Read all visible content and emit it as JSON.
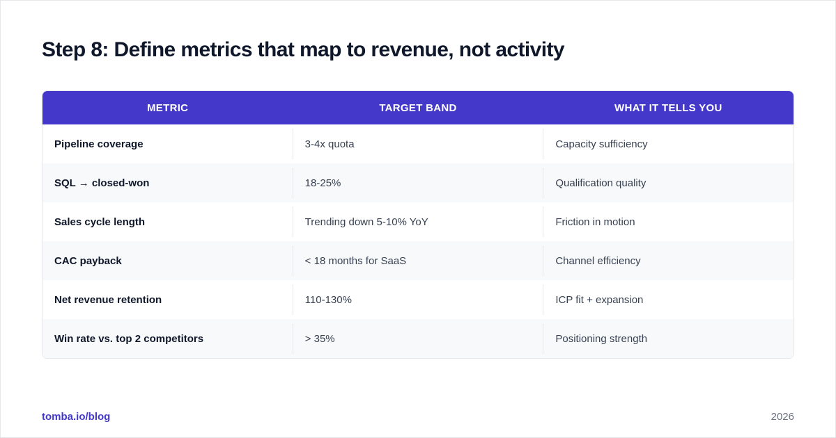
{
  "title": "Step 8: Define metrics that map to revenue, not activity",
  "table": {
    "headers": [
      "METRIC",
      "TARGET BAND",
      "WHAT IT TELLS YOU"
    ],
    "rows": [
      [
        "Pipeline coverage",
        "3-4x quota",
        "Capacity sufficiency"
      ],
      [
        "SQL → closed-won",
        "18-25%",
        "Qualification quality"
      ],
      [
        "Sales cycle length",
        "Trending down 5-10% YoY",
        "Friction in motion"
      ],
      [
        "CAC payback",
        "< 18 months for SaaS",
        "Channel efficiency"
      ],
      [
        "Net revenue retention",
        "110-130%",
        "ICP fit + expansion"
      ],
      [
        "Win rate vs. top 2 competitors",
        "> 35%",
        "Positioning strength"
      ]
    ]
  },
  "footer": {
    "link": "tomba.io/blog",
    "year": "2026"
  },
  "colors": {
    "header_bg": "#4338ca",
    "accent": "#4338ca",
    "alt_row_bg": "#f8f9fb",
    "title": "#0f172a"
  }
}
